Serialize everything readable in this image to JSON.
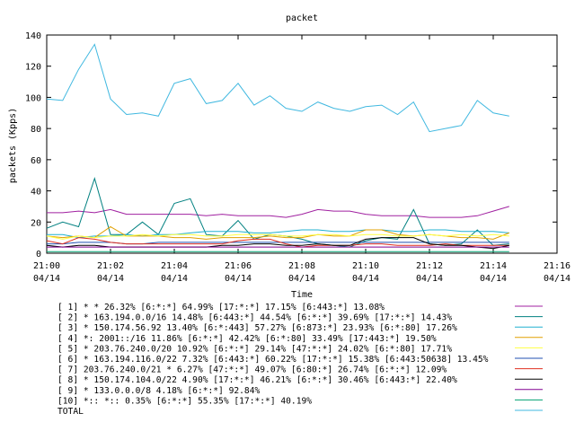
{
  "chart_data": {
    "type": "line",
    "title": "packet",
    "xlabel": "Time",
    "ylabel": "packets (Kpps)",
    "ylim": [
      0,
      140
    ],
    "yticks": [
      "0",
      "20",
      "40",
      "60",
      "80",
      "100",
      "120",
      "140"
    ],
    "xlim": [
      "21:00",
      "21:16"
    ],
    "xticks": [
      {
        "time": "21:00",
        "date": "04/14"
      },
      {
        "time": "21:02",
        "date": "04/14"
      },
      {
        "time": "21:04",
        "date": "04/14"
      },
      {
        "time": "21:06",
        "date": "04/14"
      },
      {
        "time": "21:08",
        "date": "04/14"
      },
      {
        "time": "21:10",
        "date": "04/14"
      },
      {
        "time": "21:12",
        "date": "04/14"
      },
      {
        "time": "21:14",
        "date": "04/14"
      },
      {
        "time": "21:16",
        "date": "04/14"
      }
    ],
    "grid": false,
    "legend_placement": "bottom",
    "x": [
      "21:00:00",
      "21:00:30",
      "21:01:00",
      "21:01:30",
      "21:02:00",
      "21:02:30",
      "21:03:00",
      "21:03:30",
      "21:04:00",
      "21:04:30",
      "21:05:00",
      "21:05:30",
      "21:06:00",
      "21:06:30",
      "21:07:00",
      "21:07:30",
      "21:08:00",
      "21:08:30",
      "21:09:00",
      "21:09:30",
      "21:10:00",
      "21:10:30",
      "21:11:00",
      "21:11:30",
      "21:12:00",
      "21:12:30",
      "21:13:00",
      "21:13:30",
      "21:14:00",
      "21:14:30"
    ],
    "series": [
      {
        "name": "[ 1] * * 26.32%  [6:*:*] 64.99% [17:*:*] 17.15% [6:443:*] 13.08%",
        "color": "#a020a0",
        "values": [
          26,
          26,
          27,
          26,
          28,
          25,
          25,
          25,
          25,
          25,
          24,
          25,
          24,
          24,
          24,
          23,
          25,
          28,
          27,
          27,
          25,
          24,
          24,
          24,
          23,
          23,
          23,
          24,
          27,
          30
        ]
      },
      {
        "name": "[ 2] * 163.194.0.0/16 14.48%  [6:443:*] 44.54% [6:*:*] 39.69% [17:*:*] 14.43%",
        "color": "#008080",
        "values": [
          16,
          20,
          17,
          48,
          12,
          12,
          20,
          12,
          32,
          35,
          12,
          11,
          21,
          9,
          12,
          11,
          9,
          6,
          5,
          4,
          8,
          10,
          9,
          28,
          6,
          5,
          6,
          15,
          5,
          6
        ]
      },
      {
        "name": "[ 3] * 150.174.56.92 13.40%  [6:*:443] 57.27% [6:873:*] 23.93% [6:*:80] 17.26%",
        "color": "#20b0d0",
        "values": [
          12,
          12,
          10,
          11,
          11,
          12,
          11,
          12,
          12,
          13,
          14,
          14,
          14,
          13,
          13,
          14,
          15,
          15,
          14,
          14,
          15,
          15,
          14,
          14,
          15,
          15,
          14,
          14,
          14,
          13
        ]
      },
      {
        "name": "[ 4] *: 2001::/16 11.86%  [6:*:*] 42.42% [6:*:80] 33.49% [17:443:*] 19.50%",
        "color": "#e0a000",
        "values": [
          11,
          10,
          11,
          10,
          17,
          11,
          11,
          11,
          10,
          10,
          9,
          10,
          10,
          10,
          11,
          10,
          10,
          12,
          11,
          11,
          15,
          15,
          12,
          11,
          12,
          11,
          10,
          10,
          9,
          13
        ]
      },
      {
        "name": "[ 5] * 203.76.240.0/20 10.92%  [6:*:*] 29.14% [47:*:*] 24.02% [6:*:80] 17.71%",
        "color": "#ffff40",
        "values": [
          11,
          9,
          11,
          10,
          11,
          11,
          12,
          11,
          12,
          12,
          11,
          11,
          12,
          12,
          12,
          11,
          11,
          12,
          12,
          11,
          12,
          12,
          11,
          11,
          12,
          11,
          12,
          11,
          12,
          11
        ]
      },
      {
        "name": "[ 6] * 163.194.116.0/22 7.32%  [6:443:*] 60.22% [17:*:*] 15.38% [6:443:50638] 13.45%",
        "color": "#2050b0",
        "values": [
          6,
          6,
          7,
          7,
          7,
          6,
          6,
          7,
          7,
          7,
          7,
          7,
          7,
          7,
          7,
          7,
          7,
          7,
          7,
          7,
          7,
          7,
          7,
          7,
          7,
          7,
          7,
          7,
          7,
          7
        ]
      },
      {
        "name": "[ 7] 203.76.240.0/21 * 6.27%  [47:*:*] 49.07% [6:80:*] 26.74% [6:*:*] 12.09%",
        "color": "#e03020",
        "values": [
          8,
          6,
          10,
          9,
          7,
          6,
          6,
          6,
          6,
          6,
          6,
          6,
          8,
          9,
          9,
          6,
          4,
          5,
          5,
          5,
          6,
          6,
          5,
          5,
          5,
          6,
          5,
          5,
          5,
          5
        ]
      },
      {
        "name": "[ 8] * 150.174.104.0/22 4.90%  [17:*:*] 46.21% [6:*:*] 30.46% [6:443:*] 22.40%",
        "color": "#000000",
        "values": [
          5,
          4,
          5,
          5,
          4,
          4,
          4,
          4,
          4,
          4,
          4,
          5,
          5,
          6,
          6,
          5,
          5,
          6,
          5,
          5,
          9,
          10,
          10,
          10,
          6,
          5,
          5,
          4,
          3,
          5
        ]
      },
      {
        "name": "[ 9] * 133.0.0.0/8 4.18%  [6:*:*] 92.84%",
        "color": "#800090",
        "values": [
          4,
          4,
          4,
          4,
          4,
          4,
          4,
          4,
          4,
          4,
          4,
          4,
          4,
          4,
          4,
          4,
          4,
          4,
          4,
          4,
          4,
          4,
          4,
          4,
          4,
          4,
          4,
          4,
          4,
          4
        ]
      },
      {
        "name": "[10] *:: *:: 0.35%  [6:*:*] 55.35% [17:*:*] 40.19%",
        "color": "#00a070",
        "values": [
          1,
          1,
          1,
          1,
          1,
          1,
          1,
          1,
          1,
          1,
          1,
          1,
          1,
          1,
          1,
          1,
          1,
          1,
          1,
          1,
          1,
          1,
          1,
          1,
          1,
          1,
          1,
          1,
          1,
          1
        ]
      },
      {
        "name": "TOTAL",
        "color": "#40b8e0",
        "values": [
          99,
          98,
          118,
          134,
          99,
          89,
          90,
          88,
          109,
          112,
          96,
          98,
          109,
          95,
          101,
          93,
          91,
          97,
          93,
          91,
          94,
          95,
          89,
          97,
          78,
          80,
          82,
          98,
          90,
          88
        ]
      }
    ]
  }
}
